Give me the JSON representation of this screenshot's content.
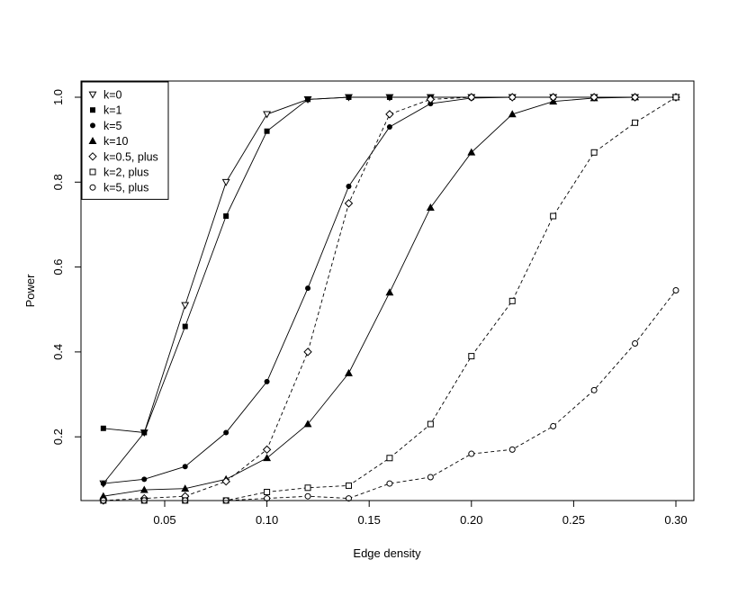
{
  "chart_data": {
    "type": "line",
    "title": "",
    "xlabel": "Edge density",
    "ylabel": "Power",
    "xlim": [
      0.02,
      0.3
    ],
    "ylim": [
      0.05,
      1.0
    ],
    "xticks": [
      0.05,
      0.1,
      0.15,
      0.2,
      0.25,
      0.3
    ],
    "xtick_labels": [
      "0.05",
      "0.10",
      "0.15",
      "0.20",
      "0.25",
      "0.30"
    ],
    "yticks": [
      0.2,
      0.4,
      0.6,
      0.8,
      1.0
    ],
    "ytick_labels": [
      "0.2",
      "0.4",
      "0.6",
      "0.8",
      "1.0"
    ],
    "grid": false,
    "legend_position": "top-left",
    "x": [
      0.02,
      0.04,
      0.06,
      0.08,
      0.1,
      0.12,
      0.14,
      0.16,
      0.18,
      0.2,
      0.22,
      0.24,
      0.26,
      0.28,
      0.3
    ],
    "series": [
      {
        "name": "k=0",
        "marker": "triangle-down-open",
        "dash": "solid",
        "values": [
          0.09,
          0.21,
          0.51,
          0.8,
          0.96,
          0.995,
          1.0,
          1.0,
          1.0,
          1.0,
          1.0,
          1.0,
          1.0,
          1.0,
          1.0
        ]
      },
      {
        "name": "k=1",
        "marker": "square-filled",
        "dash": "solid",
        "values": [
          0.22,
          0.21,
          0.46,
          0.72,
          0.92,
          0.995,
          1.0,
          1.0,
          1.0,
          1.0,
          1.0,
          1.0,
          1.0,
          1.0,
          1.0
        ]
      },
      {
        "name": "k=5",
        "marker": "circle-filled",
        "dash": "solid",
        "values": [
          0.09,
          0.1,
          0.13,
          0.21,
          0.33,
          0.55,
          0.79,
          0.93,
          0.985,
          0.998,
          1.0,
          1.0,
          1.0,
          1.0,
          1.0
        ]
      },
      {
        "name": "k=10",
        "marker": "triangle-up-filled",
        "dash": "solid",
        "values": [
          0.06,
          0.075,
          0.078,
          0.1,
          0.15,
          0.23,
          0.35,
          0.54,
          0.74,
          0.87,
          0.96,
          0.99,
          0.998,
          1.0,
          1.0
        ]
      },
      {
        "name": "k=0.5, plus",
        "marker": "diamond-open",
        "dash": "dashed",
        "values": [
          0.05,
          0.055,
          0.06,
          0.095,
          0.17,
          0.4,
          0.75,
          0.96,
          0.995,
          1.0,
          1.0,
          1.0,
          1.0,
          1.0,
          1.0
        ]
      },
      {
        "name": "k=2, plus",
        "marker": "square-open",
        "dash": "dashed",
        "values": [
          0.05,
          0.05,
          0.05,
          0.05,
          0.07,
          0.08,
          0.085,
          0.15,
          0.23,
          0.39,
          0.52,
          0.72,
          0.87,
          0.94,
          1.0
        ]
      },
      {
        "name": "k=5, plus",
        "marker": "circle-open",
        "dash": "dashed",
        "values": [
          0.05,
          0.05,
          0.05,
          0.05,
          0.055,
          0.06,
          0.055,
          0.09,
          0.105,
          0.16,
          0.17,
          0.225,
          0.31,
          0.42,
          0.545
        ]
      }
    ]
  }
}
